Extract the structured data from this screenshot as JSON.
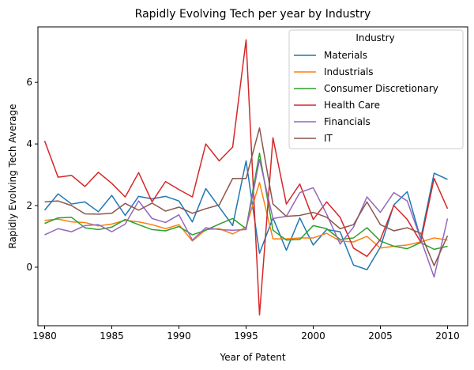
{
  "chart_data": {
    "type": "line",
    "title": "Rapidly Evolving Tech per year by Industry",
    "xlabel": "Year of Patent",
    "ylabel": "Rapidly Evolving Tech Average",
    "xlim": [
      1979.5,
      2011.5
    ],
    "ylim": [
      -1.9,
      7.8
    ],
    "xticks": [
      1980,
      1985,
      1990,
      1995,
      2000,
      2005,
      2010
    ],
    "yticks": [
      0,
      2,
      4,
      6
    ],
    "grid": false,
    "legend": {
      "title": "Industry",
      "position": "top-right"
    },
    "x": [
      1980,
      1981,
      1982,
      1983,
      1984,
      1985,
      1986,
      1987,
      1988,
      1989,
      1990,
      1991,
      1992,
      1993,
      1994,
      1995,
      1996,
      1997,
      1998,
      1999,
      2000,
      2001,
      2002,
      2003,
      2004,
      2005,
      2006,
      2007,
      2008,
      2009,
      2010
    ],
    "series": [
      {
        "name": "Materials",
        "color": "#1f77b4",
        "values": [
          1.85,
          2.38,
          2.05,
          2.12,
          1.8,
          2.33,
          1.68,
          2.3,
          2.22,
          2.3,
          2.15,
          1.47,
          2.55,
          1.95,
          1.35,
          3.45,
          0.45,
          1.6,
          0.55,
          1.6,
          0.72,
          1.22,
          1.15,
          0.07,
          -0.08,
          0.65,
          2.02,
          2.45,
          0.92,
          3.05,
          2.85
        ]
      },
      {
        "name": "Industrials",
        "color": "#ff7f0e",
        "values": [
          1.52,
          1.56,
          1.47,
          1.45,
          1.34,
          1.4,
          1.52,
          1.47,
          1.38,
          1.25,
          1.38,
          0.85,
          1.22,
          1.25,
          1.08,
          1.3,
          2.75,
          0.92,
          0.92,
          0.95,
          0.95,
          1.1,
          0.85,
          0.82,
          1.0,
          0.62,
          0.68,
          0.72,
          0.82,
          0.95,
          0.88
        ]
      },
      {
        "name": "Consumer Discretionary",
        "color": "#2ca02c",
        "values": [
          1.42,
          1.6,
          1.62,
          1.28,
          1.22,
          1.3,
          1.55,
          1.38,
          1.22,
          1.18,
          1.32,
          1.05,
          1.2,
          1.4,
          1.58,
          1.25,
          3.7,
          1.2,
          0.88,
          0.9,
          1.35,
          1.25,
          0.9,
          0.95,
          1.28,
          0.85,
          0.68,
          0.6,
          0.8,
          0.58,
          0.68
        ]
      },
      {
        "name": "Health Care",
        "color": "#d62728",
        "values": [
          4.1,
          2.92,
          2.98,
          2.62,
          3.08,
          2.72,
          2.28,
          3.07,
          2.12,
          2.78,
          2.52,
          2.28,
          4.0,
          3.45,
          3.9,
          7.38,
          -1.55,
          4.2,
          2.05,
          2.7,
          1.55,
          2.12,
          1.62,
          0.62,
          0.35,
          0.9,
          2.0,
          1.55,
          0.82,
          2.88,
          1.9
        ]
      },
      {
        "name": "Financials",
        "color": "#9467bd",
        "values": [
          1.05,
          1.25,
          1.15,
          1.35,
          1.38,
          1.15,
          1.4,
          2.15,
          1.58,
          1.45,
          1.7,
          0.88,
          1.28,
          1.22,
          1.2,
          1.22,
          3.5,
          1.58,
          1.65,
          2.42,
          2.58,
          1.72,
          0.75,
          1.3,
          2.28,
          1.78,
          2.42,
          2.15,
          0.92,
          -0.32,
          1.58
        ]
      },
      {
        "name": "IT",
        "color": "#8c564b",
        "values": [
          2.12,
          2.15,
          2.0,
          1.73,
          1.72,
          1.75,
          2.07,
          1.85,
          2.08,
          1.82,
          1.95,
          1.75,
          1.9,
          2.02,
          2.88,
          2.88,
          4.52,
          2.05,
          1.65,
          1.68,
          1.78,
          1.62,
          1.25,
          1.38,
          2.12,
          1.38,
          1.18,
          1.28,
          1.1,
          0.05,
          1.02
        ]
      }
    ]
  }
}
